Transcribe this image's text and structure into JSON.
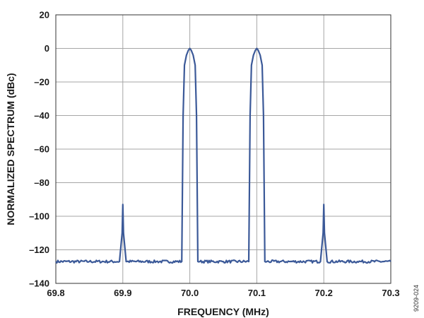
{
  "chart_data": {
    "type": "line",
    "title": "",
    "xlabel": "FREQUENCY (MHz)",
    "ylabel": "NORMALIZED SPECTRUM (dBc)",
    "xlim": [
      69.8,
      70.3
    ],
    "ylim": [
      -140,
      20
    ],
    "x_ticks": [
      69.8,
      69.9,
      70.0,
      70.1,
      70.2,
      70.3
    ],
    "x_tick_labels": [
      "69.8",
      "69.9",
      "70.0",
      "70.1",
      "70.2",
      "70.3"
    ],
    "y_ticks": [
      20,
      0,
      -20,
      -40,
      -60,
      -80,
      -100,
      -120,
      -140
    ],
    "y_tick_labels": [
      "20",
      "0",
      "–20",
      "–40",
      "–60",
      "–80",
      "–100",
      "–120",
      "–140"
    ],
    "grid": true,
    "series_color": "#3b5998",
    "series": [
      {
        "x": [
          69.8,
          69.85,
          69.895,
          69.899,
          69.9,
          69.901,
          69.905,
          69.95,
          69.988,
          69.99,
          69.992,
          69.995,
          69.998,
          70.0,
          70.002,
          70.005,
          70.008,
          70.01,
          70.012,
          70.015,
          70.05,
          70.088,
          70.09,
          70.092,
          70.095,
          70.098,
          70.1,
          70.102,
          70.105,
          70.108,
          70.11,
          70.112,
          70.115,
          70.15,
          70.195,
          70.199,
          70.2,
          70.201,
          70.205,
          70.25,
          70.3
        ],
        "y": [
          -127,
          -127,
          -127,
          -110,
          -93,
          -110,
          -127,
          -127,
          -127,
          -40,
          -10,
          -4,
          -1,
          0,
          -1,
          -4,
          -10,
          -40,
          -127,
          -127,
          -127,
          -127,
          -40,
          -10,
          -4,
          -1,
          0,
          -1,
          -4,
          -10,
          -40,
          -127,
          -127,
          -127,
          -127,
          -110,
          -93,
          -110,
          -127,
          -127,
          -127
        ]
      }
    ]
  },
  "figure_id": "9209-024"
}
